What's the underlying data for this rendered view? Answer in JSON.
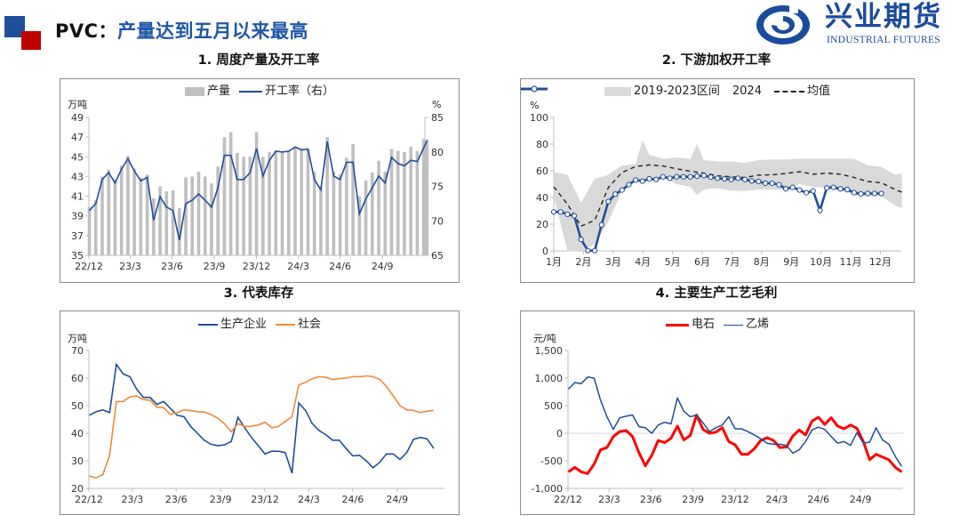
{
  "header": {
    "title_prefix": "PVC：",
    "title_main": "产量达到五月以来最高",
    "logo_cn": "兴业期货",
    "logo_en": "INDUSTRIAL FUTURES",
    "colors": {
      "brand_blue": "#1f4e9c",
      "brand_red": "#c00000",
      "title_blue": "#1f57a8"
    }
  },
  "chart_data": [
    {
      "type": "bar+line",
      "title": "1. 周度产量及开工率",
      "ylabel_left": "万吨",
      "ylabel_right": "%",
      "ylim_left": [
        35,
        49
      ],
      "ylim_right": [
        65,
        85
      ],
      "yticks_left": [
        35,
        37,
        39,
        41,
        43,
        45,
        47,
        49
      ],
      "yticks_right": [
        65,
        70,
        75,
        80,
        85
      ],
      "xtick_labels": [
        "22/12",
        "23/3",
        "23/6",
        "23/9",
        "23/12",
        "24/3",
        "24/6",
        "24/9"
      ],
      "legend_placement": "top",
      "grid": false,
      "x": [
        "2022-12-02",
        "2022-12-16",
        "2022-12-30",
        "2023-01-13",
        "2023-01-27",
        "2023-02-10",
        "2023-02-24",
        "2023-03-10",
        "2023-03-24",
        "2023-04-07",
        "2023-04-21",
        "2023-05-05",
        "2023-05-19",
        "2023-06-02",
        "2023-06-16",
        "2023-06-30",
        "2023-07-14",
        "2023-07-28",
        "2023-08-11",
        "2023-08-25",
        "2023-09-08",
        "2023-09-22",
        "2023-10-06",
        "2023-10-20",
        "2023-11-03",
        "2023-11-17",
        "2023-12-01",
        "2023-12-15",
        "2023-12-29",
        "2024-01-12",
        "2024-01-26",
        "2024-02-09",
        "2024-02-23",
        "2024-03-08",
        "2024-03-22",
        "2024-04-05",
        "2024-04-19",
        "2024-05-03",
        "2024-05-17",
        "2024-05-31",
        "2024-06-14",
        "2024-06-28",
        "2024-07-12",
        "2024-07-26",
        "2024-08-09",
        "2024-08-23",
        "2024-09-06",
        "2024-09-20",
        "2024-10-04",
        "2024-10-18",
        "2024-11-01",
        "2024-11-15",
        "2024-11-29",
        "2024-12-06"
      ],
      "series": [
        {
          "name": "产量",
          "type": "bar",
          "axis": "left",
          "color": "#bfbfbf",
          "values": [
            39.9,
            40.6,
            43.0,
            43.7,
            42.7,
            44.1,
            45.1,
            43.8,
            42.9,
            43.2,
            40.8,
            42.0,
            41.5,
            41.6,
            39.8,
            42.9,
            43.0,
            43.5,
            43.0,
            42.3,
            44.0,
            47.0,
            47.5,
            45.4,
            45.0,
            45.0,
            47.5,
            45.0,
            45.5,
            45.6,
            45.5,
            45.6,
            46.0,
            45.7,
            45.8,
            43.5,
            42.0,
            47.0,
            43.5,
            43.2,
            44.9,
            46.3,
            41.0,
            42.6,
            43.4,
            44.6,
            43.5,
            45.8,
            45.6,
            45.5,
            46.0,
            45.6,
            46.8,
            46.8
          ]
        },
        {
          "name": "开工率（右）",
          "type": "line",
          "axis": "right",
          "color": "#1f4e9c",
          "values": [
            71.5,
            72.5,
            76,
            77,
            75.5,
            77.5,
            79,
            77.2,
            75.8,
            76.3,
            70.1,
            73.5,
            72,
            71.5,
            67.2,
            72.5,
            73,
            73.9,
            73,
            72,
            74.8,
            79.5,
            79.5,
            76,
            76,
            77,
            80.5,
            76.5,
            78.8,
            80.1,
            80,
            80.1,
            80.7,
            80.3,
            80.4,
            76,
            74.5,
            81.5,
            76.5,
            76,
            78.5,
            78.5,
            71,
            73.2,
            74.8,
            76.5,
            75.5,
            79.2,
            78.3,
            78,
            78.8,
            78.6,
            80.6,
            81.6
          ]
        }
      ]
    },
    {
      "type": "line+area",
      "title": "2. 下游加权开工率",
      "ylabel": "%",
      "ylim": [
        0,
        100
      ],
      "yticks": [
        0,
        20,
        40,
        60,
        80,
        100
      ],
      "xtick_labels": [
        "1月",
        "2月",
        "3月",
        "4月",
        "5月",
        "6月",
        "7月",
        "8月",
        "9月",
        "10月",
        "11月",
        "12月"
      ],
      "legend_placement": "top",
      "grid": false,
      "range_band": {
        "name": "2019-2023区间",
        "color": "#d9d9d9",
        "week": [
          1,
          3,
          5,
          7,
          9,
          11,
          13,
          14,
          15,
          17,
          19,
          21,
          22,
          23,
          25,
          27,
          29,
          31,
          33,
          35,
          37,
          39,
          41,
          43,
          45,
          47,
          49,
          51,
          52
        ],
        "upper": [
          59,
          57,
          36,
          54,
          57,
          64,
          65,
          83,
          72,
          69,
          70,
          69,
          80,
          68,
          67,
          67,
          66,
          68,
          68.5,
          68.5,
          69,
          69,
          69,
          69,
          69,
          64,
          63,
          57,
          58
        ],
        "lower": [
          40,
          0,
          0,
          5,
          22,
          45,
          53,
          53,
          53,
          55,
          50,
          48,
          42,
          46,
          47,
          45,
          45,
          46,
          46,
          46,
          50,
          48,
          47,
          45,
          42,
          41,
          41,
          34,
          32
        ]
      },
      "mean": {
        "name": "均值",
        "color": "#222222",
        "week": [
          1,
          3,
          5,
          7,
          9,
          11,
          13,
          15,
          17,
          19,
          21,
          23,
          25,
          27,
          29,
          31,
          33,
          35,
          37,
          39,
          41,
          43,
          45,
          47,
          49,
          51,
          52
        ],
        "values": [
          48,
          35,
          18.5,
          23,
          47.5,
          58.8,
          63.2,
          64.5,
          63.6,
          61.5,
          59.7,
          58.3,
          56.3,
          55.5,
          55,
          56.8,
          57,
          58,
          59.3,
          57.5,
          58.3,
          57.5,
          55,
          52,
          51,
          46,
          44
        ]
      },
      "series": [
        {
          "name": "2024",
          "color": "#1f4e9c",
          "week": [
            1,
            2,
            3,
            4,
            5,
            6,
            7,
            8,
            9,
            10,
            11,
            12,
            13,
            14,
            15,
            16,
            17,
            18,
            19,
            20,
            21,
            22,
            23,
            24,
            25,
            26,
            27,
            28,
            29,
            30,
            31,
            32,
            33,
            34,
            35,
            36,
            37,
            38,
            39,
            40,
            41,
            42,
            43,
            44,
            45,
            46,
            47,
            48,
            49
          ],
          "values": [
            29.2,
            29.2,
            27.4,
            26.3,
            8.6,
            0.2,
            0.2,
            19.5,
            37,
            42.5,
            45.6,
            49.6,
            53.1,
            52.2,
            54,
            53.5,
            55.5,
            54.4,
            55.5,
            55.5,
            55.5,
            56,
            56.4,
            55.3,
            54.4,
            54,
            53.5,
            54.4,
            53.5,
            52.4,
            52,
            50.7,
            50.7,
            49.6,
            46.5,
            47.6,
            45.6,
            43.6,
            44.9,
            30.3,
            47.2,
            47.6,
            46.5,
            46,
            43.6,
            42.7,
            43,
            43,
            43
          ]
        }
      ]
    },
    {
      "type": "line",
      "title": "3. 代表库存",
      "ylabel": "万吨",
      "ylim": [
        20,
        70
      ],
      "yticks": [
        20,
        30,
        40,
        50,
        60,
        70
      ],
      "xtick_labels": [
        "22/12",
        "23/3",
        "23/6",
        "23/9",
        "23/12",
        "24/3",
        "24/6",
        "24/9"
      ],
      "legend_placement": "top",
      "grid": false,
      "x": [
        "2022-12-02",
        "2022-12-16",
        "2022-12-30",
        "2023-01-13",
        "2023-01-27",
        "2023-02-10",
        "2023-02-24",
        "2023-03-10",
        "2023-03-24",
        "2023-04-07",
        "2023-04-21",
        "2023-05-05",
        "2023-05-19",
        "2023-06-02",
        "2023-06-16",
        "2023-06-30",
        "2023-07-14",
        "2023-07-28",
        "2023-08-11",
        "2023-08-25",
        "2023-09-08",
        "2023-09-22",
        "2023-10-06",
        "2023-10-20",
        "2023-11-03",
        "2023-11-17",
        "2023-12-01",
        "2023-12-15",
        "2023-12-29",
        "2024-01-12",
        "2024-01-26",
        "2024-02-09",
        "2024-02-23",
        "2024-03-08",
        "2024-03-22",
        "2024-04-05",
        "2024-04-19",
        "2024-05-03",
        "2024-05-17",
        "2024-05-31",
        "2024-06-14",
        "2024-06-28",
        "2024-07-12",
        "2024-07-26",
        "2024-08-09",
        "2024-08-23",
        "2024-09-06",
        "2024-09-20",
        "2024-10-04",
        "2024-10-18",
        "2024-11-01",
        "2024-11-15"
      ],
      "series": [
        {
          "name": "生产企业",
          "color": "#1f4e9c",
          "values": [
            46.5,
            47.8,
            48.5,
            47.5,
            65,
            61.5,
            60.5,
            56,
            53,
            53,
            50.5,
            51.5,
            49,
            46.5,
            46,
            42.5,
            40,
            37.5,
            36,
            35.5,
            35.8,
            37,
            45.8,
            42,
            38.5,
            35.5,
            32.5,
            33.5,
            33.5,
            33,
            25.5,
            51,
            48.3,
            43.5,
            41,
            39.5,
            37.5,
            37.5,
            34.5,
            31.8,
            32,
            30,
            27.5,
            29.5,
            32.5,
            32.5,
            30.5,
            33,
            37.8,
            38.5,
            38,
            34.5
          ]
        },
        {
          "name": "社会",
          "color": "#f08a3c",
          "values": [
            24.5,
            23.8,
            25,
            32,
            51.5,
            51.5,
            53.2,
            53.5,
            52.2,
            52,
            49.5,
            49.3,
            46.8,
            47.5,
            48.5,
            48.2,
            47.8,
            47.7,
            46.8,
            45.5,
            43.5,
            40.5,
            43.5,
            42.5,
            42.5,
            43,
            44,
            42,
            42.5,
            44.3,
            46,
            57.5,
            58.5,
            59.8,
            60.5,
            60.3,
            59.5,
            59.8,
            60,
            60.5,
            60.5,
            60.8,
            60.5,
            59.5,
            57,
            53.5,
            50,
            48.5,
            48.3,
            47.5,
            48,
            48.3
          ]
        }
      ]
    },
    {
      "type": "line",
      "title": "4. 主要生产工艺毛利",
      "ylabel": "元/吨",
      "ylim": [
        -1000,
        1500
      ],
      "yticks": [
        -1000,
        -500,
        0,
        500,
        1000,
        1500
      ],
      "ytick_labels": [
        "-1,000",
        "-500",
        "0",
        "500",
        "1,000",
        "1,500"
      ],
      "xtick_labels": [
        "22/12",
        "23/3",
        "23/6",
        "23/9",
        "23/12",
        "24/3",
        "24/6",
        "24/9"
      ],
      "legend_placement": "top",
      "grid": false,
      "x": [
        "2022-12-02",
        "2022-12-16",
        "2022-12-30",
        "2023-01-13",
        "2023-01-27",
        "2023-02-10",
        "2023-02-24",
        "2023-03-10",
        "2023-03-24",
        "2023-04-07",
        "2023-04-21",
        "2023-05-05",
        "2023-05-19",
        "2023-06-02",
        "2023-06-16",
        "2023-06-30",
        "2023-07-14",
        "2023-07-28",
        "2023-08-11",
        "2023-08-25",
        "2023-09-08",
        "2023-09-22",
        "2023-10-06",
        "2023-10-20",
        "2023-11-03",
        "2023-11-17",
        "2023-12-01",
        "2023-12-15",
        "2023-12-29",
        "2024-01-12",
        "2024-01-26",
        "2024-02-09",
        "2024-02-23",
        "2024-03-08",
        "2024-03-22",
        "2024-04-05",
        "2024-04-19",
        "2024-05-03",
        "2024-05-17",
        "2024-05-31",
        "2024-06-14",
        "2024-06-28",
        "2024-07-12",
        "2024-07-26",
        "2024-08-09",
        "2024-08-23",
        "2024-09-06",
        "2024-09-20",
        "2024-10-04",
        "2024-10-18",
        "2024-11-01",
        "2024-11-15",
        "2024-11-29"
      ],
      "series": [
        {
          "name": "电石",
          "color": "#ff0000",
          "width": 3,
          "values": [
            -700,
            -620,
            -700,
            -730,
            -560,
            -300,
            -260,
            -60,
            30,
            50,
            -60,
            -350,
            -590,
            -400,
            -130,
            -170,
            -90,
            130,
            -120,
            -40,
            330,
            70,
            0,
            20,
            100,
            -150,
            -210,
            -380,
            -380,
            -280,
            -130,
            -80,
            -130,
            -260,
            -250,
            -50,
            60,
            -30,
            220,
            290,
            160,
            280,
            130,
            80,
            150,
            90,
            -150,
            -480,
            -380,
            -430,
            -480,
            -620,
            -700
          ]
        },
        {
          "name": "乙烯",
          "color": "#1f4e9c",
          "width": 1.5,
          "values": [
            800,
            920,
            900,
            1020,
            1000,
            600,
            300,
            70,
            280,
            310,
            330,
            120,
            100,
            0,
            150,
            200,
            170,
            640,
            400,
            300,
            330,
            190,
            30,
            100,
            150,
            300,
            80,
            80,
            30,
            -30,
            -100,
            -180,
            -200,
            -200,
            -220,
            -360,
            -300,
            -150,
            60,
            110,
            70,
            -60,
            -180,
            -150,
            -220,
            10,
            -180,
            -160,
            100,
            -120,
            -200,
            -420,
            -600
          ]
        }
      ]
    }
  ]
}
